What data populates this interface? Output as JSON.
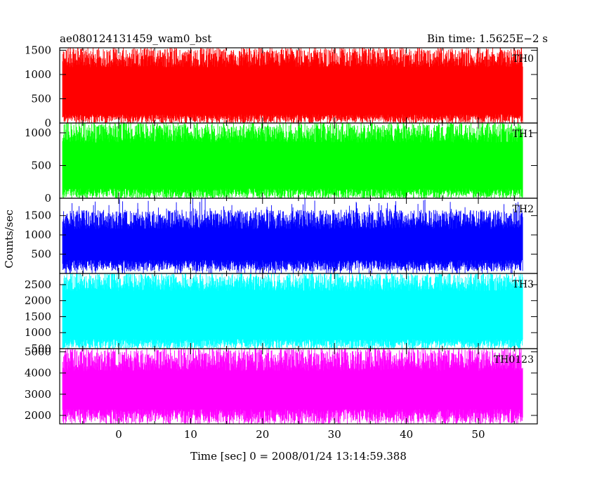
{
  "chart_data": {
    "type": "line",
    "title_left": "ae080124131459_wam0_bst",
    "title_right": "Bin time: 1.5625E−2 s",
    "ylabel": "Counts/sec",
    "xlabel": "Time [sec] 0 = 2008/01/24 13:14:59.388",
    "xlim": [
      -8.2,
      58.2
    ],
    "data_range": [
      -7.8,
      56.2
    ],
    "x_ticks": [
      0,
      10,
      20,
      30,
      40,
      50
    ],
    "x_tick_labels": [
      "0",
      "10",
      "20",
      "30",
      "40",
      "50"
    ],
    "panels": [
      {
        "name": "TH0",
        "color": "#ff0000",
        "ylim": [
          0,
          1550
        ],
        "y_ticks": [
          0,
          500,
          1000,
          1500
        ],
        "y_tick_labels": [
          "0",
          "500",
          "1000",
          "1500"
        ],
        "band_low": [
          0,
          180
        ],
        "band_high": [
          1150,
          1550
        ],
        "spike_max": 1550
      },
      {
        "name": "TH1",
        "color": "#00ff00",
        "ylim": [
          0,
          1150
        ],
        "y_ticks": [
          0,
          500,
          1000
        ],
        "y_tick_labels": [
          "0",
          "500",
          "1000"
        ],
        "band_low": [
          0,
          150
        ],
        "band_high": [
          850,
          1150
        ],
        "spike_max": 1150
      },
      {
        "name": "TH2",
        "color": "#0000ff",
        "ylim": [
          0,
          1950
        ],
        "y_ticks": [
          500,
          1000,
          1500
        ],
        "y_tick_labels": [
          "500",
          "1000",
          "1500"
        ],
        "band_low": [
          50,
          350
        ],
        "band_high": [
          1150,
          1650
        ],
        "spike_max": 1950
      },
      {
        "name": "TH3",
        "color": "#00ffff",
        "ylim": [
          500,
          2850
        ],
        "y_ticks": [
          500,
          1000,
          1500,
          2000,
          2500
        ],
        "y_tick_labels": [
          "500",
          "1000",
          "1500",
          "2000",
          "2500"
        ],
        "band_low": [
          500,
          800
        ],
        "band_high": [
          2300,
          2850
        ],
        "spike_max": 2850
      },
      {
        "name": "TH0123",
        "color": "#ff00ff",
        "ylim": [
          1600,
          5150
        ],
        "y_ticks": [
          2000,
          3000,
          4000,
          5000
        ],
        "y_tick_labels": [
          "2000",
          "3000",
          "4000",
          "5000"
        ],
        "band_low": [
          1600,
          2300
        ],
        "band_high": [
          4100,
          5150
        ],
        "spike_max": 5150
      }
    ]
  }
}
